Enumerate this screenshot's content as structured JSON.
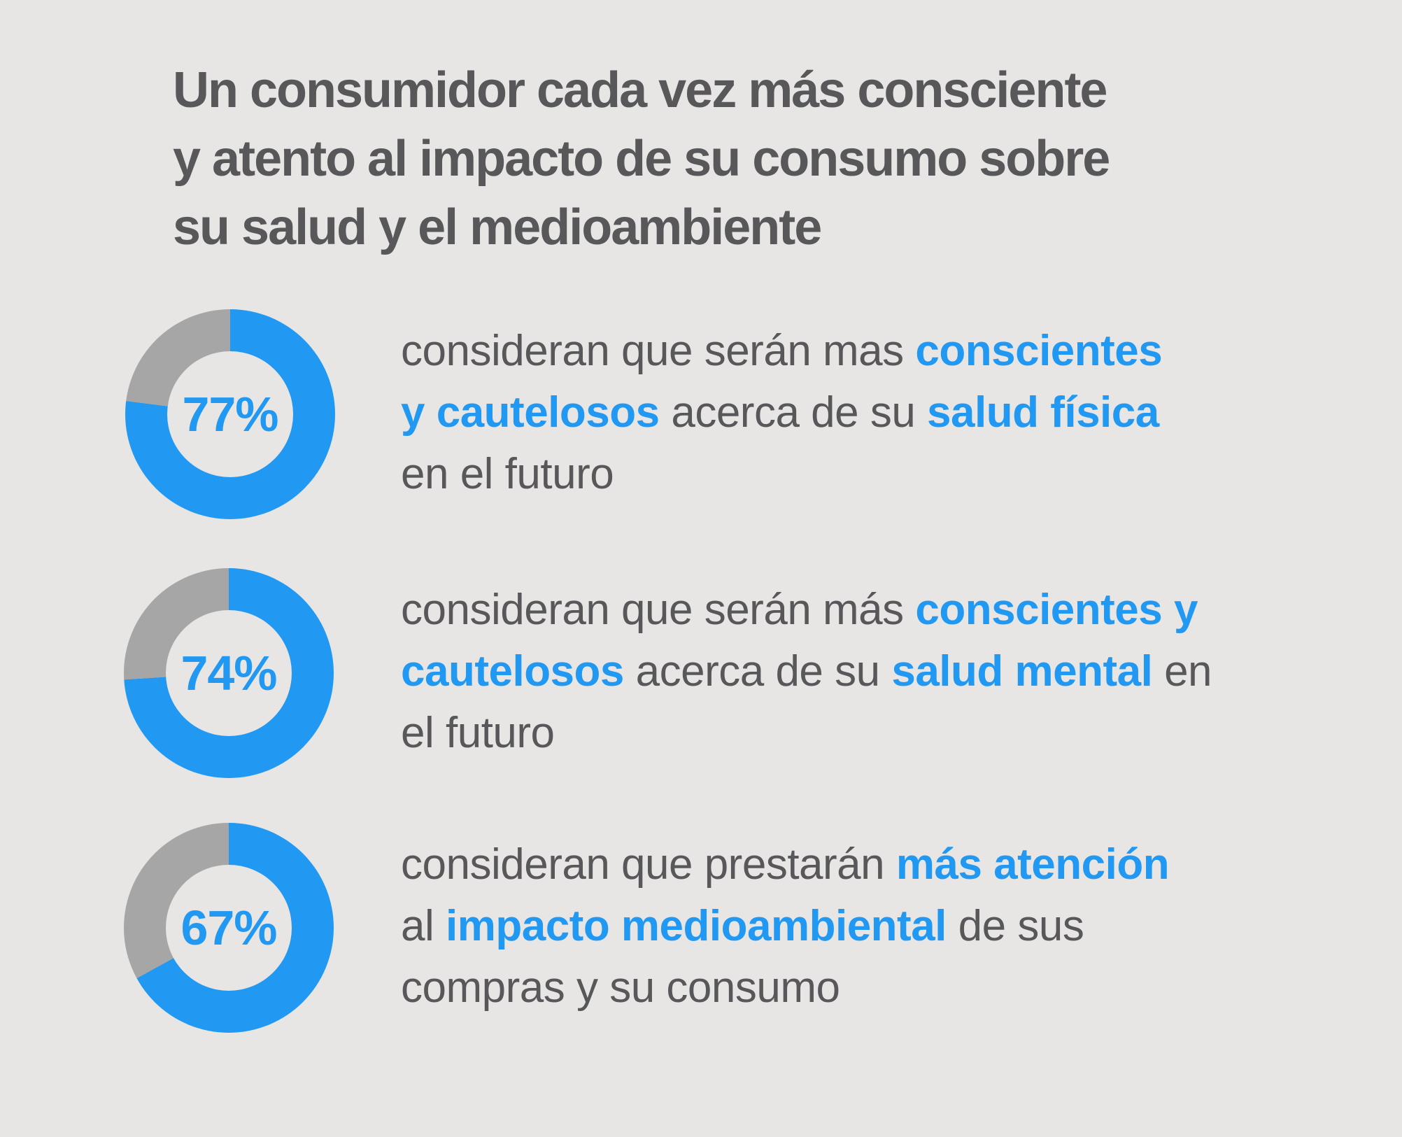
{
  "colors": {
    "background": "#E8E6E5",
    "accent_blue": "#2199F2",
    "donut_remainder_gray": "#A6A6A6",
    "text_dark": "#58585A"
  },
  "title": {
    "lines": [
      "Un consumidor cada vez más consciente",
      "y atento al impacto de su consumo sobre",
      "su salud y el medioambiente"
    ]
  },
  "stats": [
    {
      "percent": 77,
      "label": "77%",
      "lines": [
        {
          "segments": [
            {
              "text": "consideran que serán mas ",
              "accent": false
            },
            {
              "text": "conscientes",
              "accent": true
            }
          ]
        },
        {
          "segments": [
            {
              "text": "y cautelosos",
              "accent": true
            },
            {
              "text": " acerca de su ",
              "accent": false
            },
            {
              "text": "salud física",
              "accent": true
            }
          ]
        },
        {
          "segments": [
            {
              "text": "en el futuro",
              "accent": false
            }
          ]
        }
      ]
    },
    {
      "percent": 74,
      "label": "74%",
      "lines": [
        {
          "segments": [
            {
              "text": "consideran que serán más ",
              "accent": false
            },
            {
              "text": "conscientes y",
              "accent": true
            }
          ]
        },
        {
          "segments": [
            {
              "text": "cautelosos",
              "accent": true
            },
            {
              "text": " acerca de su ",
              "accent": false
            },
            {
              "text": "salud mental",
              "accent": true
            },
            {
              "text": " en",
              "accent": false
            }
          ]
        },
        {
          "segments": [
            {
              "text": "el futuro",
              "accent": false
            }
          ]
        }
      ]
    },
    {
      "percent": 67,
      "label": "67%",
      "lines": [
        {
          "segments": [
            {
              "text": "consideran que prestarán ",
              "accent": false
            },
            {
              "text": "más atención",
              "accent": true
            }
          ]
        },
        {
          "segments": [
            {
              "text": "al ",
              "accent": false
            },
            {
              "text": "impacto medioambiental",
              "accent": true
            },
            {
              "text": " de sus",
              "accent": false
            }
          ]
        },
        {
          "segments": [
            {
              "text": "compras y su consumo",
              "accent": false
            }
          ]
        }
      ]
    }
  ],
  "chart_data": [
    {
      "type": "pie",
      "variant": "donut",
      "values": [
        77,
        23
      ],
      "labels": [
        "consideran",
        "resto"
      ],
      "colors": [
        "#2199F2",
        "#A6A6A6"
      ],
      "center_label": "77%",
      "start_angle_deg": 0,
      "direction": "clockwise",
      "title": "consideran que serán mas conscientes y cautelosos acerca de su salud física en el futuro"
    },
    {
      "type": "pie",
      "variant": "donut",
      "values": [
        74,
        26
      ],
      "labels": [
        "consideran",
        "resto"
      ],
      "colors": [
        "#2199F2",
        "#A6A6A6"
      ],
      "center_label": "74%",
      "start_angle_deg": 0,
      "direction": "clockwise",
      "title": "consideran que serán más conscientes y cautelosos acerca de su salud mental en el futuro"
    },
    {
      "type": "pie",
      "variant": "donut",
      "values": [
        67,
        33
      ],
      "labels": [
        "consideran",
        "resto"
      ],
      "colors": [
        "#2199F2",
        "#A6A6A6"
      ],
      "center_label": "67%",
      "start_angle_deg": 0,
      "direction": "clockwise",
      "title": "consideran que prestarán más atención al impacto medioambiental de sus compras y su consumo"
    }
  ]
}
